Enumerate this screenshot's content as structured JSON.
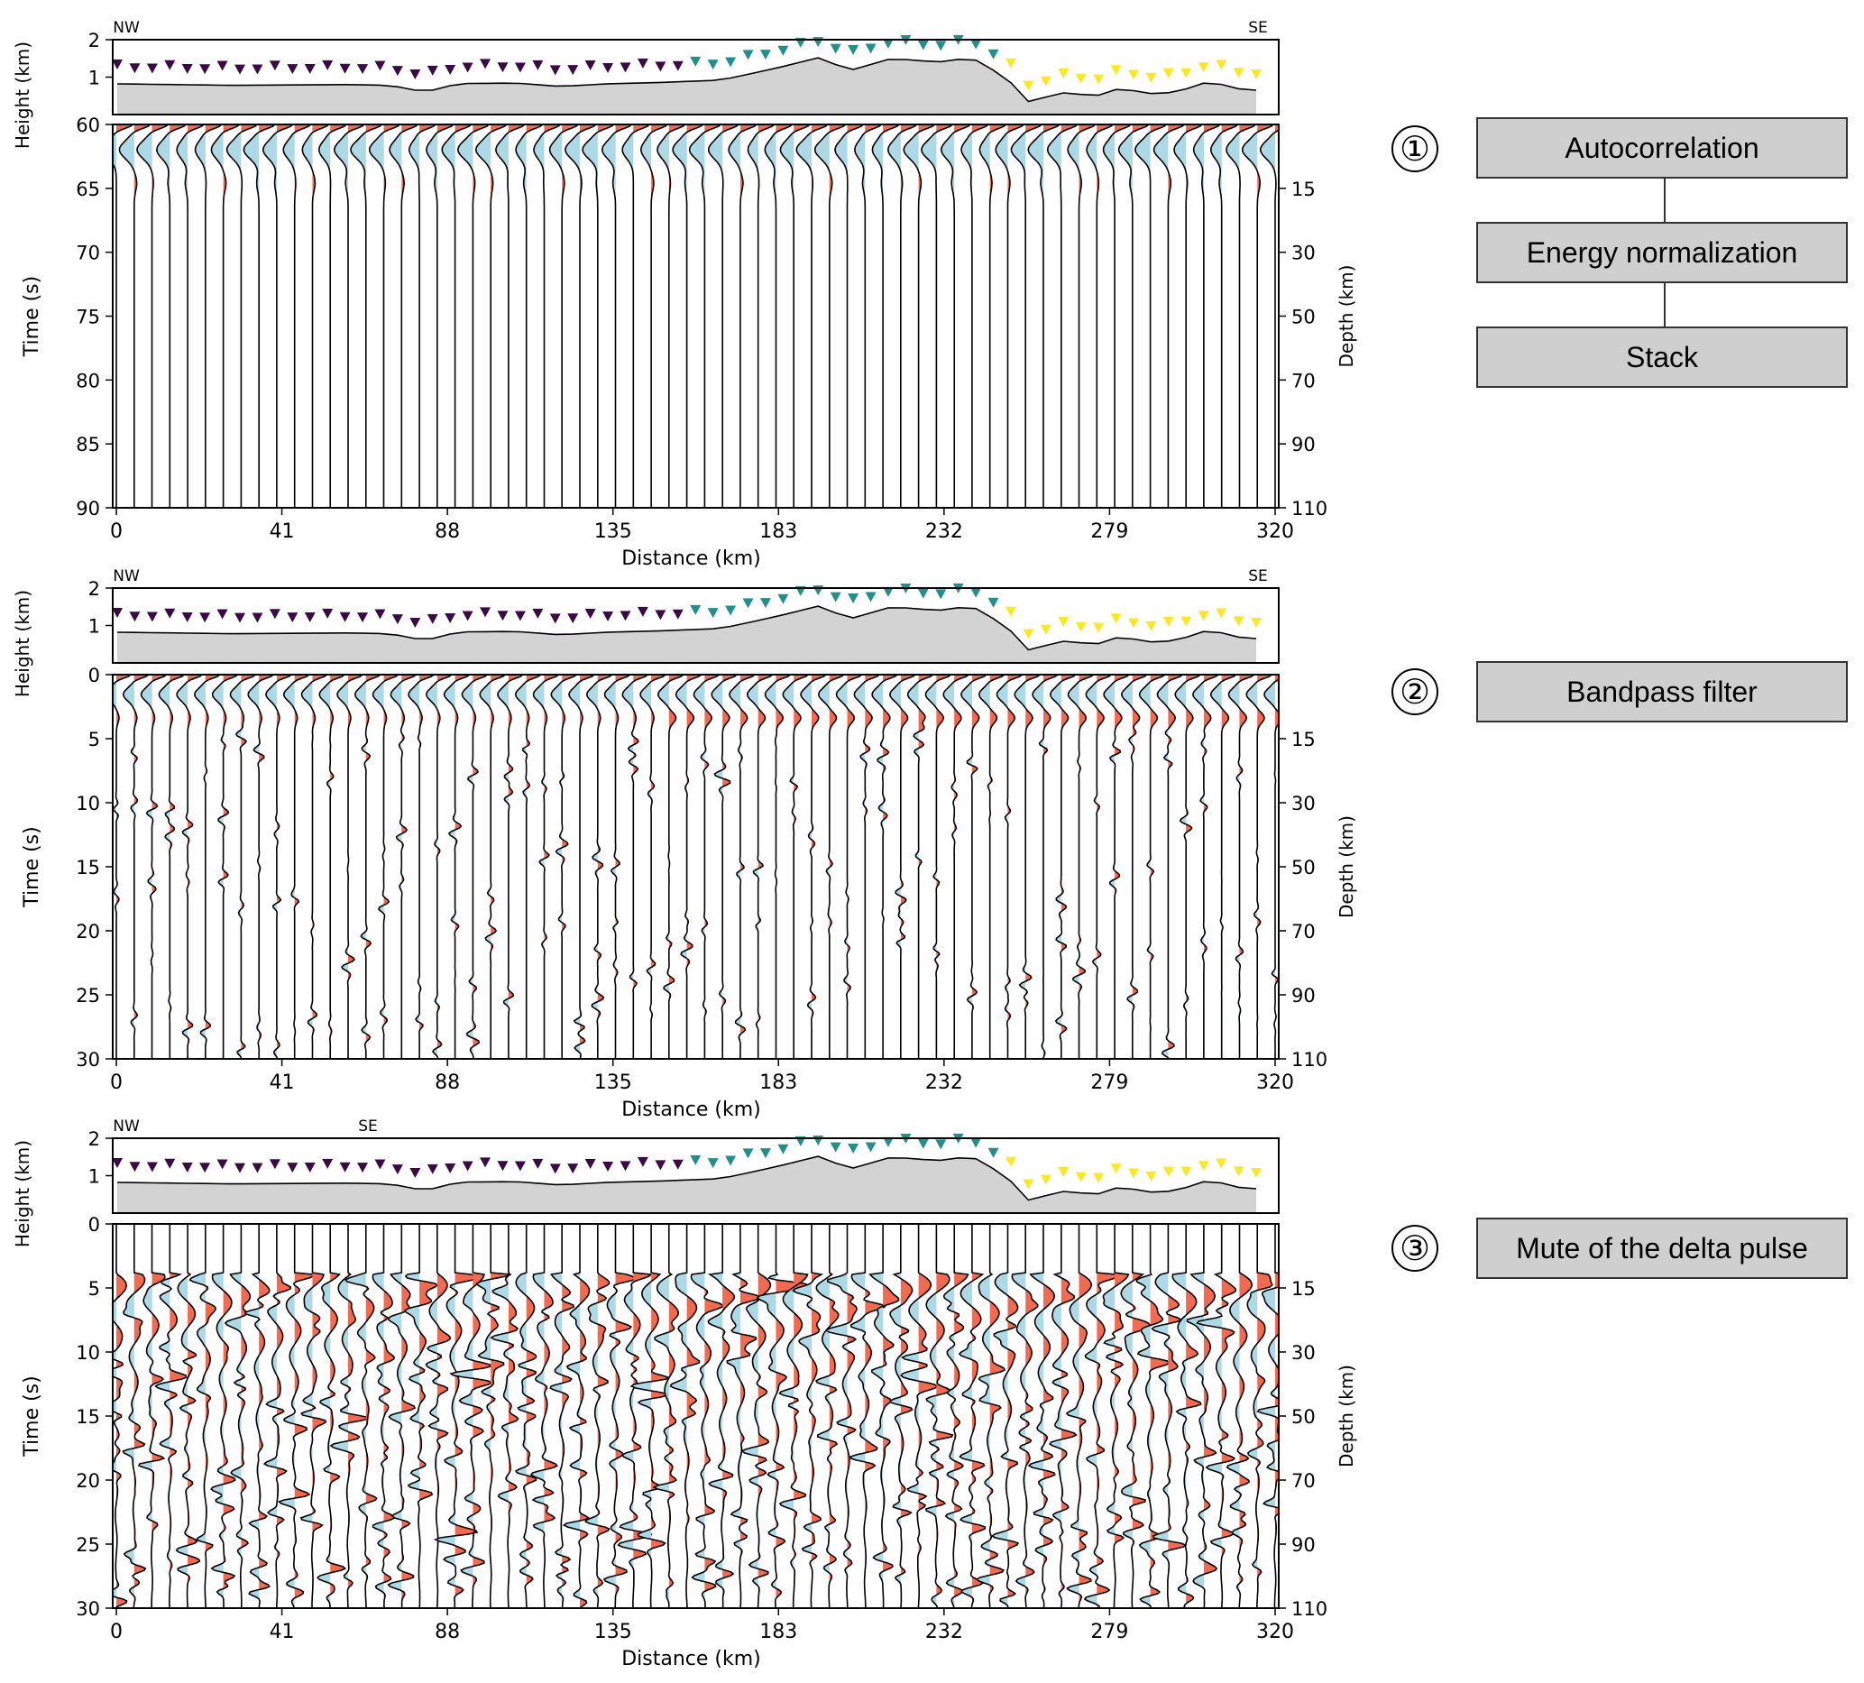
{
  "chart_data": [
    {
      "type": "line",
      "panel": "1",
      "elevation_profile": {
        "ylabel": "Height (km)",
        "yticks": [
          "2",
          "1"
        ],
        "left_label": "NW",
        "right_label": "SE"
      },
      "section": {
        "xlabel": "Distance (km)",
        "xticks": [
          "0",
          "41",
          "88",
          "135",
          "183",
          "232",
          "279",
          "320"
        ],
        "ylabel_left": "Time (s)",
        "yticks_left": [
          "60",
          "65",
          "70",
          "75",
          "80",
          "85",
          "90"
        ],
        "ylim_left": [
          60,
          90
        ],
        "ylabel_right": "Depth (km)",
        "yticks_right": [
          "15",
          "30",
          "50",
          "70",
          "90",
          "110"
        ],
        "trace_count": 66
      }
    },
    {
      "type": "line",
      "panel": "2",
      "elevation_profile": {
        "ylabel": "Height (km)",
        "yticks": [
          "2",
          "1"
        ],
        "left_label": "NW",
        "right_label": "SE"
      },
      "section": {
        "xlabel": "Distance (km)",
        "xticks": [
          "0",
          "41",
          "88",
          "135",
          "183",
          "232",
          "279",
          "320"
        ],
        "ylabel_left": "Time (s)",
        "yticks_left": [
          "0",
          "5",
          "10",
          "15",
          "20",
          "25",
          "30"
        ],
        "ylim_left": [
          0,
          30
        ],
        "ylabel_right": "Depth (km)",
        "yticks_right": [
          "15",
          "30",
          "50",
          "70",
          "90",
          "110"
        ],
        "trace_count": 66
      }
    },
    {
      "type": "line",
      "panel": "3",
      "elevation_profile": {
        "ylabel": "Height (km)",
        "yticks": [
          "2",
          "1"
        ],
        "left_label": "NW",
        "right_label": "SE"
      },
      "section": {
        "xlabel": "Distance (km)",
        "xticks": [
          "0",
          "41",
          "88",
          "135",
          "183",
          "232",
          "279",
          "320"
        ],
        "ylabel_left": "Time (s)",
        "yticks_left": [
          "0",
          "5",
          "10",
          "15",
          "20",
          "25",
          "30"
        ],
        "ylim_left": [
          0,
          30
        ],
        "ylabel_right": "Depth (km)",
        "yticks_right": [
          "15",
          "30",
          "50",
          "70",
          "90",
          "110"
        ],
        "trace_count": 66
      }
    }
  ],
  "colors": {
    "positive_fill": "#f26b50",
    "negative_fill": "#add8e6",
    "terrain_fill": "#d3d3d3",
    "station_group_1": "#3b0a45",
    "station_group_2": "#21908d",
    "station_group_3": "#fde725",
    "process_box": "#cfcfcf"
  },
  "steps": [
    {
      "number": "①",
      "boxes": [
        "Autocorrelation",
        "Energy normalization",
        "Stack"
      ]
    },
    {
      "number": "②",
      "boxes": [
        "Bandpass filter"
      ]
    },
    {
      "number": "③",
      "boxes": [
        "Mute of the delta pulse"
      ]
    }
  ]
}
